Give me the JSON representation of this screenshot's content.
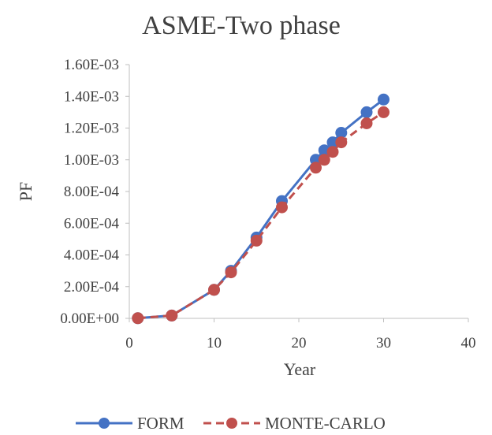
{
  "chart_data": {
    "type": "line",
    "title": "ASME-Two phase",
    "xlabel": "Year",
    "ylabel": "PF",
    "xlim": [
      0,
      40
    ],
    "ylim": [
      0,
      0.0016
    ],
    "x_ticks": [
      0,
      10,
      20,
      30,
      40
    ],
    "y_ticks": [
      0,
      0.0002,
      0.0004,
      0.0006,
      0.0008,
      0.001,
      0.0012,
      0.0014,
      0.0016
    ],
    "x_tick_labels": [
      "0",
      "10",
      "20",
      "30",
      "40"
    ],
    "y_tick_labels": [
      "0.00E+00",
      "2.00E-04",
      "4.00E-04",
      "6.00E-04",
      "8.00E-04",
      "1.00E-03",
      "1.20E-03",
      "1.40E-03",
      "1.60E-03"
    ],
    "grid": false,
    "legend_position": "bottom",
    "series": [
      {
        "name": "FORM",
        "color": "#4472c4",
        "line_style": "solid",
        "x": [
          1,
          5,
          10,
          12,
          15,
          18,
          22,
          23,
          24,
          25,
          28,
          30
        ],
        "y": [
          1e-06,
          1.8e-05,
          0.00018,
          0.0003,
          0.00051,
          0.00074,
          0.001,
          0.00106,
          0.00111,
          0.00117,
          0.0013,
          0.00138
        ]
      },
      {
        "name": "MONTE-CARLO",
        "color": "#c0504d",
        "line_style": "dashed",
        "x": [
          1,
          5,
          10,
          12,
          15,
          18,
          22,
          23,
          24,
          25,
          28,
          30
        ],
        "y": [
          1e-06,
          1.8e-05,
          0.00018,
          0.00029,
          0.00049,
          0.0007,
          0.00095,
          0.001,
          0.00105,
          0.00111,
          0.00123,
          0.0013
        ]
      }
    ]
  }
}
